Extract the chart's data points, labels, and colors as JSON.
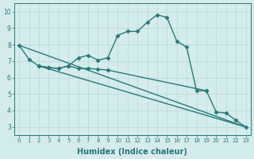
{
  "line1_x": [
    0,
    1,
    2,
    3,
    4,
    5,
    6,
    7,
    8,
    9,
    10,
    11,
    12,
    13,
    14,
    15,
    16,
    17,
    18,
    19
  ],
  "line1_y": [
    7.95,
    7.1,
    6.7,
    6.6,
    6.55,
    6.7,
    7.2,
    7.35,
    7.05,
    7.2,
    8.55,
    8.8,
    8.8,
    9.35,
    9.8,
    9.65,
    8.2,
    7.85,
    5.2,
    5.2
  ],
  "line2_x": [
    2,
    3,
    4,
    5,
    6,
    7,
    8,
    9,
    19,
    20,
    21,
    22,
    23
  ],
  "line2_y": [
    6.7,
    6.6,
    6.55,
    6.7,
    6.55,
    6.55,
    6.5,
    6.45,
    5.2,
    3.9,
    3.85,
    3.4,
    3.0
  ],
  "line3_x": [
    0,
    23
  ],
  "line3_y": [
    7.95,
    3.0
  ],
  "line4_x": [
    2,
    23
  ],
  "line4_y": [
    6.7,
    3.0
  ],
  "color": "#267878",
  "bg_color": "#d4ecec",
  "grid_color": "#b8d8d8",
  "xlabel": "Humidex (Indice chaleur)",
  "xlim": [
    -0.5,
    23.5
  ],
  "ylim": [
    2.5,
    10.5
  ],
  "yticks": [
    3,
    4,
    5,
    6,
    7,
    8,
    9,
    10
  ],
  "xticks": [
    0,
    1,
    2,
    3,
    4,
    5,
    6,
    7,
    8,
    9,
    10,
    11,
    12,
    13,
    14,
    15,
    16,
    17,
    18,
    19,
    20,
    21,
    22,
    23
  ],
  "marker": "D",
  "markersize": 2.5,
  "linewidth": 1.0,
  "xlabel_fontsize": 7,
  "tick_fontsize": 5
}
